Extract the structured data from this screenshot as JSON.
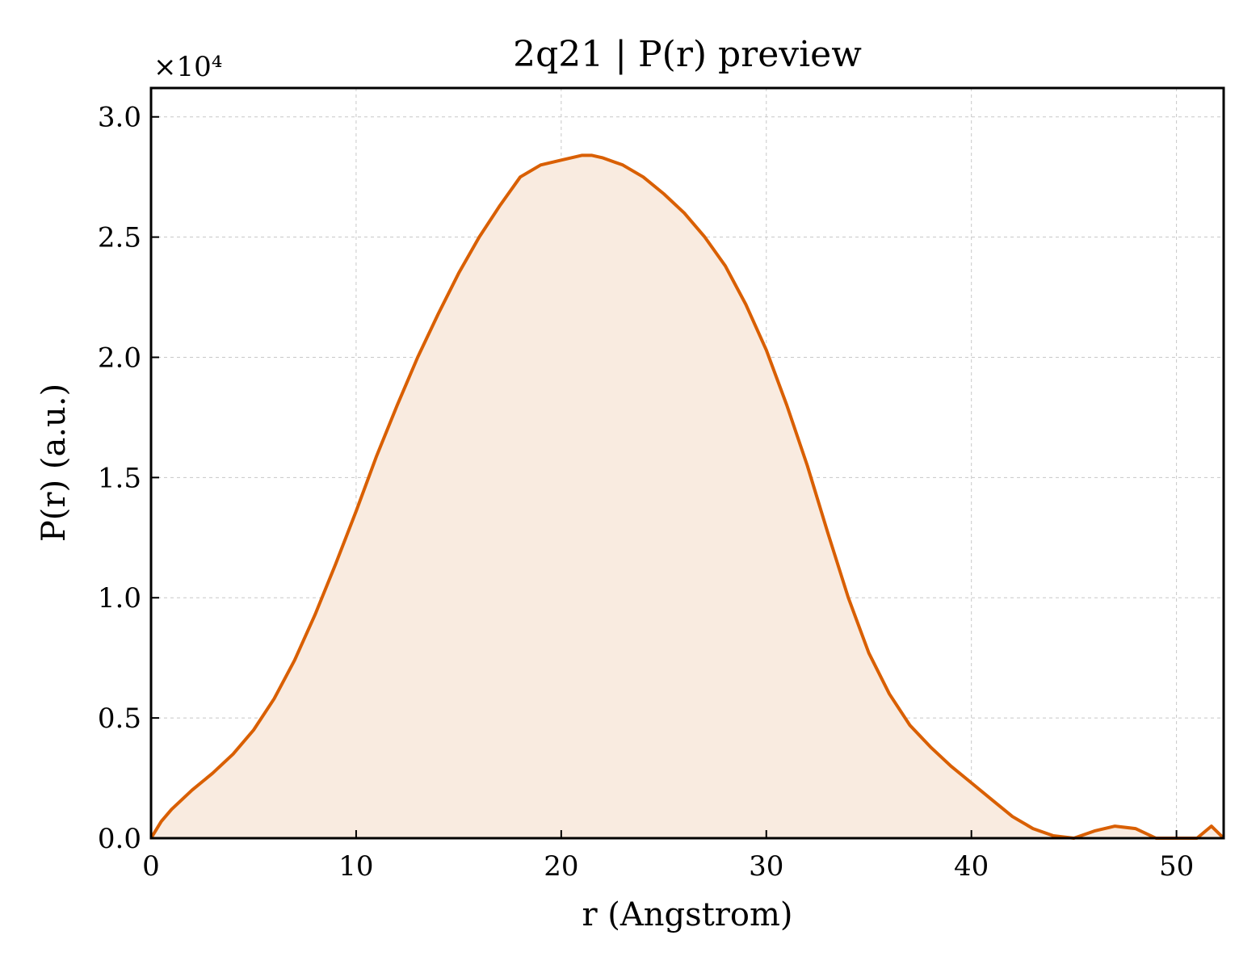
{
  "chart_data": {
    "type": "line",
    "title": "2q21 | P(r) preview",
    "xlabel": "r (Angstrom)",
    "ylabel": "P(r) (a.u.)",
    "y_multiplier_label": "×10⁴",
    "y_scale_exponent": 4,
    "xlim": [
      0,
      52.3
    ],
    "ylim": [
      0,
      3.12
    ],
    "x_ticks": [
      0,
      10,
      20,
      30,
      40,
      50
    ],
    "x_tick_labels": [
      "0",
      "10",
      "20",
      "30",
      "40",
      "50"
    ],
    "y_ticks": [
      0,
      0.5,
      1.0,
      1.5,
      2.0,
      2.5,
      3.0
    ],
    "y_tick_labels": [
      "0.0",
      "0.5",
      "1.0",
      "1.5",
      "2.0",
      "2.5",
      "3.0"
    ],
    "grid": true,
    "line_color": "#d95f02",
    "fill_color": "#f9ebe0",
    "series": [
      {
        "x": [
          0,
          0.5,
          1,
          2,
          3,
          4,
          5,
          6,
          7,
          8,
          9,
          10,
          11,
          12,
          13,
          14,
          15,
          16,
          17,
          18,
          19,
          20,
          21,
          21.5,
          22,
          23,
          24,
          25,
          26,
          27,
          28,
          29,
          30,
          31,
          32,
          33,
          34,
          35,
          36,
          37,
          38,
          39,
          40,
          41,
          42,
          43,
          44,
          45,
          46,
          47,
          48,
          49,
          50,
          51,
          51.7,
          52.3
        ],
        "y": [
          0,
          0.07,
          0.12,
          0.2,
          0.27,
          0.35,
          0.45,
          0.58,
          0.74,
          0.93,
          1.14,
          1.36,
          1.59,
          1.8,
          2.0,
          2.18,
          2.35,
          2.5,
          2.63,
          2.75,
          2.8,
          2.82,
          2.84,
          2.84,
          2.83,
          2.8,
          2.75,
          2.68,
          2.6,
          2.5,
          2.38,
          2.22,
          2.03,
          1.8,
          1.55,
          1.27,
          1.0,
          0.77,
          0.6,
          0.47,
          0.38,
          0.3,
          0.23,
          0.16,
          0.09,
          0.04,
          0.01,
          0.0,
          0.03,
          0.05,
          0.04,
          0.0,
          -0.03,
          0.0,
          0.05,
          0.0
        ]
      }
    ]
  }
}
